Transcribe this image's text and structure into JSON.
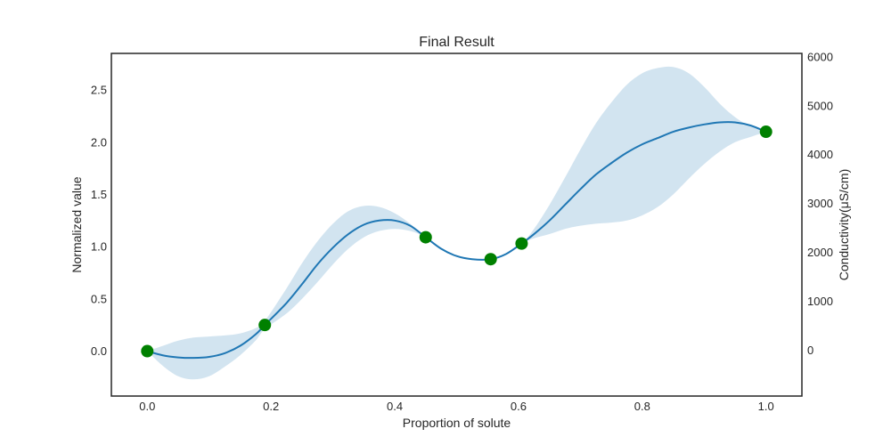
{
  "chart_data": {
    "type": "line",
    "title": "Final Result",
    "xlabel": "Proportion of solute",
    "ylabel": "Normalized value",
    "y2label": "Conductivity(μS/cm)",
    "xlim": [
      -0.058,
      1.058
    ],
    "ylim": [
      -0.43,
      2.85
    ],
    "y2lim": [
      -940,
      6070
    ],
    "x_ticks": [
      0.0,
      0.2,
      0.4,
      0.6,
      0.8,
      1.0
    ],
    "x_tick_labels": [
      "0.0",
      "0.2",
      "0.4",
      "0.6",
      "0.8",
      "1.0"
    ],
    "y_ticks": [
      0.0,
      0.5,
      1.0,
      1.5,
      2.0,
      2.5
    ],
    "y_tick_labels": [
      "0.0",
      "0.5",
      "1.0",
      "1.5",
      "2.0",
      "2.5"
    ],
    "y2_ticks": [
      0,
      1000,
      2000,
      3000,
      4000,
      5000,
      6000
    ],
    "y2_tick_labels": [
      "0",
      "1000",
      "2000",
      "3000",
      "4000",
      "5000",
      "6000"
    ],
    "grid": false,
    "series": [
      {
        "kind": "mean_line",
        "color": "#1f77b4",
        "x": [
          0.0,
          0.025,
          0.05,
          0.075,
          0.1,
          0.125,
          0.15,
          0.175,
          0.19,
          0.225,
          0.25,
          0.275,
          0.3,
          0.325,
          0.35,
          0.375,
          0.4,
          0.425,
          0.45,
          0.475,
          0.5,
          0.525,
          0.555,
          0.58,
          0.605,
          0.625,
          0.65,
          0.675,
          0.7,
          0.725,
          0.75,
          0.775,
          0.8,
          0.825,
          0.85,
          0.875,
          0.9,
          0.925,
          0.95,
          0.975,
          1.0
        ],
        "y": [
          0.0,
          -0.04,
          -0.06,
          -0.065,
          -0.055,
          -0.02,
          0.05,
          0.16,
          0.25,
          0.46,
          0.64,
          0.83,
          0.99,
          1.12,
          1.21,
          1.25,
          1.25,
          1.2,
          1.09,
          0.98,
          0.91,
          0.88,
          0.88,
          0.93,
          1.03,
          1.12,
          1.25,
          1.4,
          1.55,
          1.69,
          1.8,
          1.9,
          1.98,
          2.04,
          2.1,
          2.14,
          2.17,
          2.19,
          2.19,
          2.16,
          2.1
        ]
      },
      {
        "kind": "confidence_band",
        "color": "#1f77b4",
        "opacity": 0.2,
        "x": [
          0.0,
          0.025,
          0.05,
          0.075,
          0.1,
          0.125,
          0.15,
          0.175,
          0.19,
          0.225,
          0.25,
          0.275,
          0.3,
          0.325,
          0.35,
          0.375,
          0.4,
          0.425,
          0.45,
          0.475,
          0.5,
          0.525,
          0.555,
          0.58,
          0.605,
          0.625,
          0.65,
          0.675,
          0.7,
          0.725,
          0.75,
          0.775,
          0.8,
          0.825,
          0.85,
          0.875,
          0.9,
          0.925,
          0.95,
          0.975,
          1.0
        ],
        "upper": [
          0.0,
          0.05,
          0.1,
          0.13,
          0.14,
          0.15,
          0.17,
          0.22,
          0.29,
          0.6,
          0.84,
          1.05,
          1.22,
          1.34,
          1.39,
          1.38,
          1.32,
          1.22,
          1.09,
          0.98,
          0.91,
          0.88,
          0.88,
          0.94,
          1.03,
          1.17,
          1.4,
          1.66,
          1.93,
          2.18,
          2.38,
          2.55,
          2.66,
          2.71,
          2.72,
          2.66,
          2.53,
          2.37,
          2.24,
          2.15,
          2.1
        ]
      },
      {
        "kind": "confidence_band_lower",
        "x": [
          0.0,
          0.025,
          0.05,
          0.075,
          0.1,
          0.125,
          0.15,
          0.175,
          0.19,
          0.225,
          0.25,
          0.275,
          0.3,
          0.325,
          0.35,
          0.375,
          0.4,
          0.425,
          0.45,
          0.475,
          0.5,
          0.525,
          0.555,
          0.58,
          0.605,
          0.625,
          0.65,
          0.675,
          0.7,
          0.725,
          0.75,
          0.775,
          0.8,
          0.825,
          0.85,
          0.875,
          0.9,
          0.925,
          0.95,
          0.975,
          1.0
        ],
        "lower": [
          0.0,
          -0.14,
          -0.24,
          -0.27,
          -0.24,
          -0.15,
          -0.04,
          0.1,
          0.21,
          0.36,
          0.5,
          0.66,
          0.83,
          0.98,
          1.09,
          1.15,
          1.17,
          1.15,
          1.09,
          0.98,
          0.91,
          0.88,
          0.88,
          0.93,
          1.03,
          1.08,
          1.12,
          1.17,
          1.2,
          1.22,
          1.23,
          1.25,
          1.3,
          1.38,
          1.5,
          1.65,
          1.79,
          1.91,
          2.0,
          2.05,
          2.1
        ]
      },
      {
        "kind": "observations",
        "color": "#008000",
        "x": [
          0.0,
          0.19,
          0.45,
          0.555,
          0.605,
          1.0
        ],
        "y": [
          0.0,
          0.25,
          1.09,
          0.88,
          1.03,
          2.1
        ]
      }
    ]
  }
}
